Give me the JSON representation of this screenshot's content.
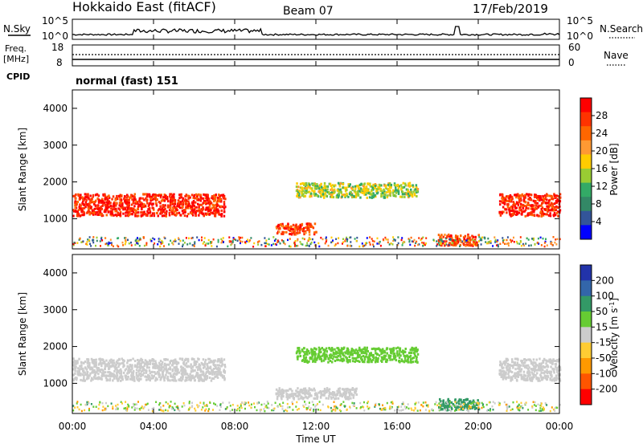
{
  "header": {
    "station": "Hokkaido East (fitACF)",
    "beam": "Beam 07",
    "date": "17/Feb/2019"
  },
  "noise_panel": {
    "left_label": "N.Sky",
    "right_label": "N.Search",
    "tick_top": "10^5",
    "tick_bottom": "10^0",
    "right_tick_top": "10^5",
    "right_tick_bottom": "10^0"
  },
  "freq_panel": {
    "left_label_1": "Freq.",
    "left_label_2": "[MHz]",
    "left_tick_top": "18",
    "left_tick_bottom": "8",
    "right_label": "Nave",
    "right_tick_top": "60",
    "right_tick_bottom": "0"
  },
  "cpid_panel": {
    "label": "CPID",
    "mode_text": "normal (fast) 151"
  },
  "power_panel": {
    "ylabel": "Slant Range [km]",
    "yticks": [
      "4000",
      "3000",
      "2000",
      "1000"
    ],
    "colorbar_label": "Power [dB]",
    "colorbar_ticks": [
      "28",
      "24",
      "20",
      "16",
      "12",
      "8",
      "4"
    ],
    "colorbar_colors": [
      "#ff0000",
      "#ff3300",
      "#ff6600",
      "#ff9933",
      "#ffcc00",
      "#99cc33",
      "#33aa66",
      "#338866",
      "#335599",
      "#0000ff"
    ]
  },
  "velocity_panel": {
    "ylabel": "Slant Range [km]",
    "yticks": [
      "4000",
      "3000",
      "2000",
      "1000"
    ],
    "colorbar_label": "Velocity [m s",
    "colorbar_sup": "-1",
    "colorbar_close": "]",
    "colorbar_ticks": [
      "200",
      "100",
      "50",
      "15",
      "-15",
      "-50",
      "-100",
      "-200"
    ],
    "colorbar_colors": [
      "#2233aa",
      "#3366aa",
      "#339966",
      "#66cc33",
      "#cccccc",
      "#ffcc33",
      "#ff9900",
      "#ff5500",
      "#ff0000"
    ]
  },
  "xaxis": {
    "ticks": [
      "00:00",
      "04:00",
      "08:00",
      "12:00",
      "16:00",
      "20:00",
      "00:00"
    ],
    "label": "Time UT"
  },
  "chart_data": {
    "type": "heatmap",
    "x_range_hours": [
      0,
      24
    ],
    "y_range_km": [
      180,
      4500
    ],
    "power_regions_dB": [
      {
        "t": [
          0,
          7.5
        ],
        "range_km": [
          1100,
          1700
        ],
        "power": 28
      },
      {
        "t": [
          10,
          12
        ],
        "range_km": [
          600,
          900
        ],
        "power": 26
      },
      {
        "t": [
          11,
          17
        ],
        "range_km": [
          1600,
          2000
        ],
        "power": 14
      },
      {
        "t": [
          18,
          20
        ],
        "range_km": [
          300,
          600
        ],
        "power": 26
      },
      {
        "t": [
          21,
          24
        ],
        "range_km": [
          1100,
          1700
        ],
        "power": 28
      }
    ],
    "velocity_regions_ms": [
      {
        "t": [
          0,
          7.5
        ],
        "range_km": [
          1100,
          1700
        ],
        "velocity": 0
      },
      {
        "t": [
          11,
          17
        ],
        "range_km": [
          1600,
          2000
        ],
        "velocity": 30
      },
      {
        "t": [
          10,
          14
        ],
        "range_km": [
          600,
          900
        ],
        "velocity": 0
      },
      {
        "t": [
          18,
          20
        ],
        "range_km": [
          300,
          600
        ],
        "velocity": 60
      },
      {
        "t": [
          21,
          24
        ],
        "range_km": [
          1100,
          1700
        ],
        "velocity": 0
      }
    ]
  }
}
